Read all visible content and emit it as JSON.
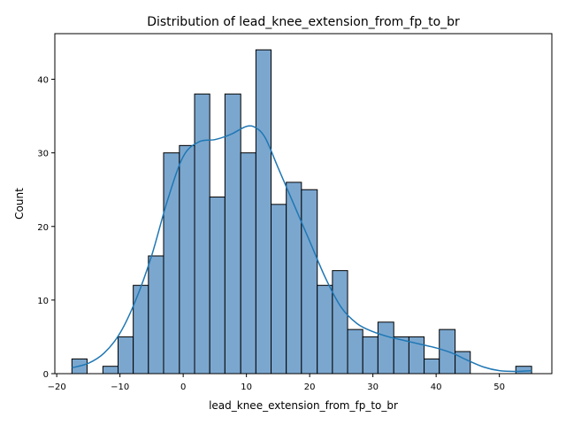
{
  "chart_data": {
    "type": "bar",
    "subtype": "histogram_with_kde",
    "title": "Distribution of lead_knee_extension_from_fp_to_br",
    "xlabel": "lead_knee_extension_from_fp_to_br",
    "ylabel": "Count",
    "xlim": [
      -20.3,
      58.3
    ],
    "ylim": [
      0,
      46.2
    ],
    "xticks": [
      -20,
      -10,
      0,
      10,
      20,
      30,
      40,
      50
    ],
    "yticks": [
      0,
      10,
      20,
      30,
      40
    ],
    "bins": [
      {
        "x0": -17.6,
        "x1": -15.2,
        "count": 2
      },
      {
        "x0": -15.2,
        "x1": -12.7,
        "count": 0
      },
      {
        "x0": -12.7,
        "x1": -10.3,
        "count": 1
      },
      {
        "x0": -10.3,
        "x1": -7.9,
        "count": 5
      },
      {
        "x0": -7.9,
        "x1": -5.5,
        "count": 12
      },
      {
        "x0": -5.5,
        "x1": -3.1,
        "count": 16
      },
      {
        "x0": -3.1,
        "x1": -0.6,
        "count": 30
      },
      {
        "x0": -0.6,
        "x1": 1.8,
        "count": 31
      },
      {
        "x0": 1.8,
        "x1": 4.2,
        "count": 38
      },
      {
        "x0": 4.2,
        "x1": 6.6,
        "count": 24
      },
      {
        "x0": 6.6,
        "x1": 9.1,
        "count": 38
      },
      {
        "x0": 9.1,
        "x1": 11.5,
        "count": 30
      },
      {
        "x0": 11.5,
        "x1": 13.9,
        "count": 44
      },
      {
        "x0": 13.9,
        "x1": 16.3,
        "count": 23
      },
      {
        "x0": 16.3,
        "x1": 18.7,
        "count": 26
      },
      {
        "x0": 18.7,
        "x1": 21.2,
        "count": 25
      },
      {
        "x0": 21.2,
        "x1": 23.6,
        "count": 12
      },
      {
        "x0": 23.6,
        "x1": 26.0,
        "count": 14
      },
      {
        "x0": 26.0,
        "x1": 28.4,
        "count": 6
      },
      {
        "x0": 28.4,
        "x1": 30.8,
        "count": 5
      },
      {
        "x0": 30.8,
        "x1": 33.3,
        "count": 7
      },
      {
        "x0": 33.3,
        "x1": 35.7,
        "count": 5
      },
      {
        "x0": 35.7,
        "x1": 38.1,
        "count": 5
      },
      {
        "x0": 38.1,
        "x1": 40.5,
        "count": 2
      },
      {
        "x0": 40.5,
        "x1": 43.0,
        "count": 6
      },
      {
        "x0": 43.0,
        "x1": 45.4,
        "count": 3
      },
      {
        "x0": 45.4,
        "x1": 47.8,
        "count": 0
      },
      {
        "x0": 47.8,
        "x1": 50.2,
        "count": 0
      },
      {
        "x0": 50.2,
        "x1": 52.6,
        "count": 0
      },
      {
        "x0": 52.6,
        "x1": 55.1,
        "count": 1
      }
    ],
    "kde": {
      "x": [
        -17.6,
        -15.0,
        -12.5,
        -10.0,
        -7.5,
        -5.0,
        -2.5,
        0.0,
        2.5,
        5.0,
        7.5,
        10.0,
        11.5,
        13.0,
        15.0,
        17.5,
        20.0,
        22.5,
        25.0,
        27.5,
        30.0,
        32.5,
        35.0,
        37.5,
        40.0,
        42.5,
        45.0,
        47.5,
        50.0,
        52.5,
        55.1
      ],
      "y": [
        0.8,
        1.4,
        2.8,
        5.5,
        10.0,
        16.0,
        23.5,
        29.5,
        31.5,
        31.8,
        32.5,
        33.6,
        33.4,
        32.0,
        28.0,
        23.0,
        18.0,
        13.0,
        9.0,
        6.8,
        5.7,
        5.0,
        4.5,
        4.0,
        3.5,
        2.8,
        1.8,
        0.9,
        0.4,
        0.3,
        0.4
      ]
    },
    "grid": false,
    "colors": {
      "bar_fill": "#7ba7cf",
      "bar_edge": "#000000",
      "kde_line": "#1f77b4"
    }
  }
}
